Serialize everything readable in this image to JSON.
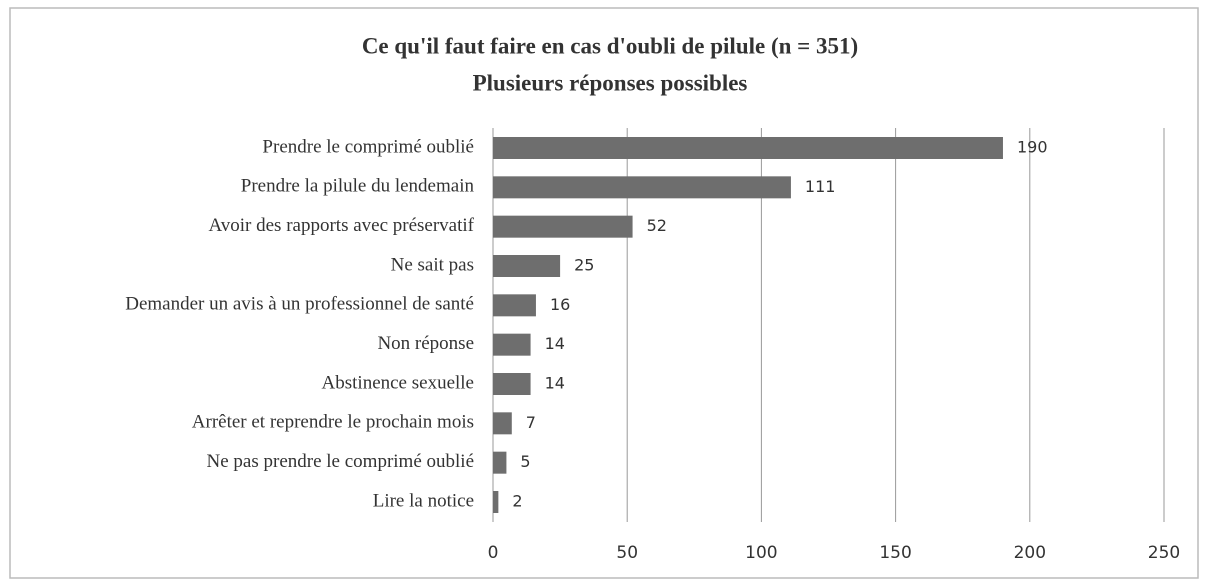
{
  "chart_data": {
    "type": "bar",
    "orientation": "horizontal",
    "title": "Ce qu'il faut faire en cas d'oubli de pilule (n = 351)",
    "subtitle": "Plusieurs réponses possibles",
    "categories": [
      "Prendre le comprimé oublié",
      "Prendre la pilule du lendemain",
      "Avoir des rapports avec préservatif",
      "Ne sait pas",
      "Demander un avis à un professionnel de santé",
      "Non réponse",
      "Abstinence sexuelle",
      "Arrêter et reprendre le prochain mois",
      "Ne pas prendre le comprimé oublié",
      "Lire la notice"
    ],
    "values": [
      190,
      111,
      52,
      25,
      16,
      14,
      14,
      7,
      5,
      2
    ],
    "color": "#6e6e6e",
    "xlim": [
      0,
      250
    ],
    "xticks": [
      0,
      50,
      100,
      150,
      200,
      250
    ],
    "grid": true
  }
}
